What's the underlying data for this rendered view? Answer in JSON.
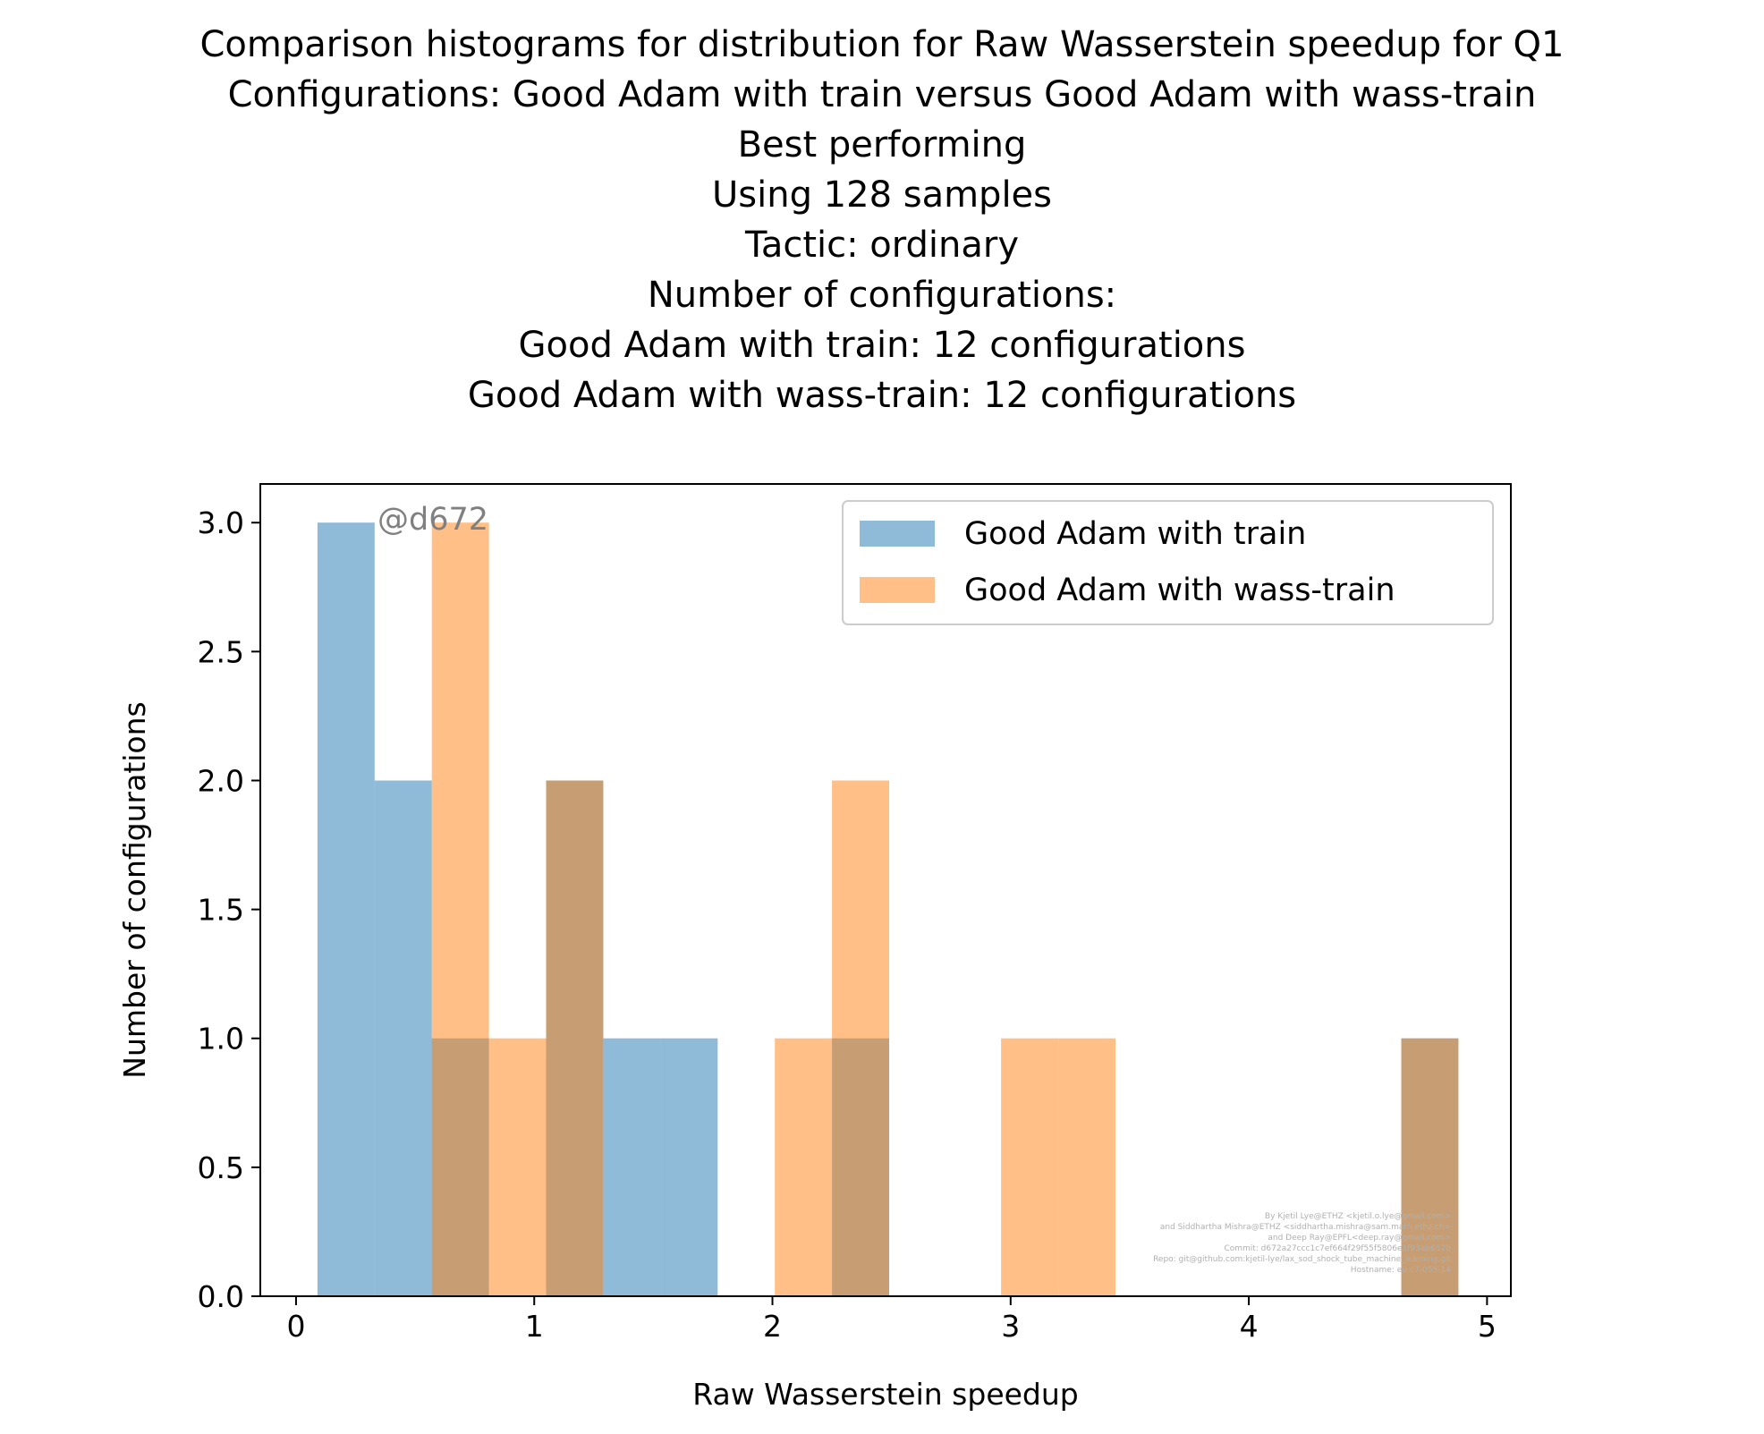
{
  "chart_data": {
    "type": "bar",
    "title_lines": [
      "Comparison histograms for distribution for Raw Wasserstein speedup for Q1",
      "Configurations: Good Adam with train versus Good Adam with wass-train",
      "Best performing",
      "Using 128 samples",
      "Tactic: ordinary",
      "Number of configurations:",
      "Good Adam with train: 12 configurations",
      "Good Adam with wass-train: 12 configurations"
    ],
    "xlabel": "Raw Wasserstein speedup",
    "ylabel": "Number of configurations",
    "xlim": [
      -0.15,
      5.1
    ],
    "ylim": [
      0,
      3.15
    ],
    "xticks": [
      0,
      1,
      2,
      3,
      4,
      5
    ],
    "yticks": [
      0.0,
      0.5,
      1.0,
      1.5,
      2.0,
      2.5,
      3.0
    ],
    "xtick_labels": [
      "0",
      "1",
      "2",
      "3",
      "4",
      "5"
    ],
    "ytick_labels": [
      "0.0",
      "0.5",
      "1.0",
      "1.5",
      "2.0",
      "2.5",
      "3.0"
    ],
    "legend_position": "top-right",
    "annotation": "@d672",
    "series": [
      {
        "name": "Good Adam with train",
        "color": "#1f77b4",
        "opacity": 0.5,
        "bins": [
          {
            "x0": 0.09,
            "x1": 0.33,
            "count": 3
          },
          {
            "x0": 0.33,
            "x1": 0.57,
            "count": 2
          },
          {
            "x0": 0.57,
            "x1": 0.81,
            "count": 1
          },
          {
            "x0": 1.05,
            "x1": 1.29,
            "count": 2
          },
          {
            "x0": 1.29,
            "x1": 1.53,
            "count": 1
          },
          {
            "x0": 1.53,
            "x1": 1.77,
            "count": 1
          },
          {
            "x0": 2.25,
            "x1": 2.49,
            "count": 1
          },
          {
            "x0": 4.64,
            "x1": 4.88,
            "count": 1
          }
        ]
      },
      {
        "name": "Good Adam with wass-train",
        "color": "#ff7f0e",
        "opacity": 0.5,
        "bins": [
          {
            "x0": 0.57,
            "x1": 0.81,
            "count": 3
          },
          {
            "x0": 0.81,
            "x1": 1.05,
            "count": 1
          },
          {
            "x0": 1.05,
            "x1": 1.29,
            "count": 2
          },
          {
            "x0": 2.01,
            "x1": 2.25,
            "count": 1
          },
          {
            "x0": 2.25,
            "x1": 2.49,
            "count": 2
          },
          {
            "x0": 2.96,
            "x1": 3.2,
            "count": 1
          },
          {
            "x0": 3.2,
            "x1": 3.44,
            "count": 1
          },
          {
            "x0": 4.64,
            "x1": 4.88,
            "count": 1
          }
        ]
      }
    ],
    "watermark_lines": [
      "By Kjetil Lye@ETHZ <kjetil.o.lye@gmail.com>",
      "and Siddhartha Mishra@ETHZ <siddhartha.mishra@sam.math.ethz.ch>",
      "and Deep Ray@EPFL<deep.ray@gmail.com>",
      "Commit: d672a27ccc1c7ef664f29f55f5806e1f93ab652b",
      "Repo: git@github.com:kjetil-lye/lax_sod_shock_tube_machine_learning.git",
      "Hostname: eu-c7-055-14"
    ]
  }
}
